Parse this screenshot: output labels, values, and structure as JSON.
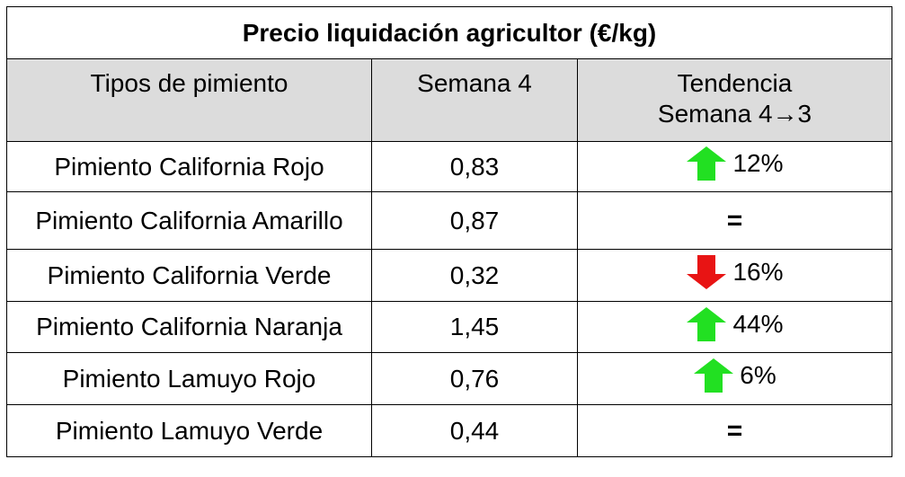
{
  "title": "Precio liquidación agricultor (€/kg)",
  "headers": {
    "type": "Tipos de pimiento",
    "week": "Semana 4",
    "trend_line1": "Tendencia",
    "trend_line2": "Semana 4→3"
  },
  "colors": {
    "up": "#22e022",
    "down": "#e81414",
    "header_bg": "#dcdcdc"
  },
  "rows": [
    {
      "type": "Pimiento California Rojo",
      "price": "0,83",
      "trend": "up",
      "trend_icon": "arrow-up-icon",
      "change": "12%"
    },
    {
      "type": "Pimiento California Amarillo",
      "price": "0,87",
      "trend": "equal",
      "trend_symbol": "="
    },
    {
      "type": "Pimiento California Verde",
      "price": "0,32",
      "trend": "down",
      "trend_icon": "arrow-down-icon",
      "change": "16%"
    },
    {
      "type": "Pimiento California Naranja",
      "price": "1,45",
      "trend": "up",
      "trend_icon": "arrow-up-icon",
      "change": "44%"
    },
    {
      "type": "Pimiento Lamuyo Rojo",
      "price": "0,76",
      "trend": "up",
      "trend_icon": "arrow-up-icon",
      "change": "6%"
    },
    {
      "type": "Pimiento Lamuyo Verde",
      "price": "0,44",
      "trend": "equal",
      "trend_symbol": "="
    }
  ]
}
